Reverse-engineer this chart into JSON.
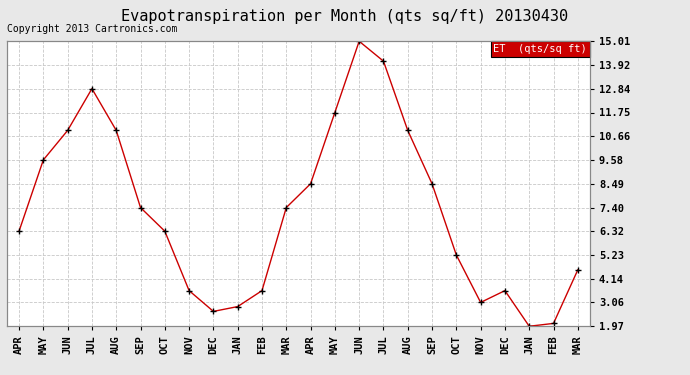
{
  "title": "Evapotranspiration per Month (qts sq/ft) 20130430",
  "copyright": "Copyright 2013 Cartronics.com",
  "legend_label": "ET  (qts/sq ft)",
  "x_labels": [
    "APR",
    "MAY",
    "JUN",
    "JUL",
    "AUG",
    "SEP",
    "OCT",
    "NOV",
    "DEC",
    "JAN",
    "FEB",
    "MAR",
    "APR",
    "MAY",
    "JUN",
    "JUL",
    "AUG",
    "SEP",
    "OCT",
    "NOV",
    "DEC",
    "JAN",
    "FEB",
    "MAR"
  ],
  "y_values": [
    6.32,
    9.58,
    10.93,
    12.84,
    10.93,
    7.4,
    6.32,
    3.6,
    2.65,
    2.87,
    3.6,
    7.4,
    8.49,
    11.75,
    15.01,
    14.1,
    10.93,
    8.49,
    5.23,
    3.06,
    3.6,
    1.97,
    2.1,
    4.55
  ],
  "yticks": [
    1.97,
    3.06,
    4.14,
    5.23,
    6.32,
    7.4,
    8.49,
    9.58,
    10.66,
    11.75,
    12.84,
    13.92,
    15.01
  ],
  "ymin": 1.97,
  "ymax": 15.01,
  "line_color": "#cc0000",
  "marker_color": "#000000",
  "grid_color": "#c8c8c8",
  "bg_color": "#e8e8e8",
  "plot_bg_color": "#ffffff",
  "legend_bg": "#cc0000",
  "legend_text_color": "#ffffff",
  "title_fontsize": 11,
  "tick_fontsize": 7.5,
  "copyright_fontsize": 7
}
